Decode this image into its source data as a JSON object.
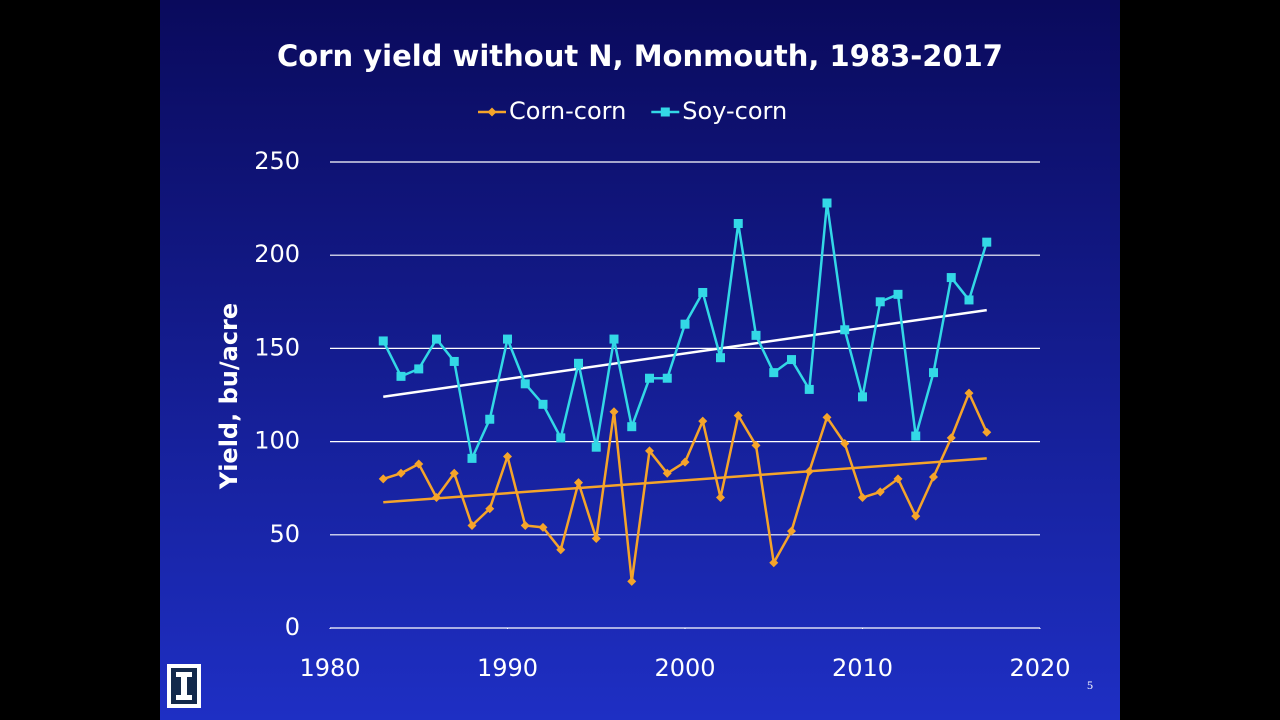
{
  "chart_data": {
    "type": "line",
    "title": "Corn yield without N, Monmouth, 1983-2017",
    "y_label": "Yield, bu/acre",
    "x": [
      1983,
      1984,
      1985,
      1986,
      1987,
      1988,
      1989,
      1990,
      1991,
      1992,
      1993,
      1994,
      1995,
      1996,
      1997,
      1998,
      1999,
      2000,
      2001,
      2002,
      2003,
      2004,
      2005,
      2006,
      2007,
      2008,
      2009,
      2010,
      2011,
      2012,
      2013,
      2014,
      2015,
      2016,
      2017
    ],
    "series": [
      {
        "name": "Corn-corn",
        "color": "#f5a42a",
        "marker": "diamond",
        "values": [
          80,
          83,
          88,
          70,
          83,
          55,
          64,
          92,
          55,
          54,
          42,
          78,
          48,
          116,
          25,
          95,
          83,
          89,
          111,
          70,
          114,
          98,
          35,
          52,
          84,
          113,
          99,
          70,
          73,
          80,
          60,
          81,
          102,
          126,
          105
        ]
      },
      {
        "name": "Soy-corn",
        "color": "#33d8e6",
        "marker": "square",
        "values": [
          154,
          135,
          139,
          155,
          143,
          91,
          112,
          155,
          131,
          120,
          102,
          142,
          97,
          155,
          108,
          134,
          134,
          163,
          180,
          145,
          217,
          157,
          137,
          144,
          128,
          228,
          160,
          124,
          175,
          179,
          103,
          137,
          188,
          176,
          207
        ]
      }
    ],
    "trendline_colors": [
      "#f5a42a",
      "#ffffff"
    ],
    "xlim": [
      1980,
      2020
    ],
    "xticks": [
      1980,
      1990,
      2000,
      2010,
      2020
    ],
    "ylim": [
      0,
      250
    ],
    "yticks": [
      0,
      50,
      100,
      150,
      200,
      250
    ],
    "grid": true,
    "legend": "top"
  },
  "slide": {
    "page_number": "5"
  }
}
